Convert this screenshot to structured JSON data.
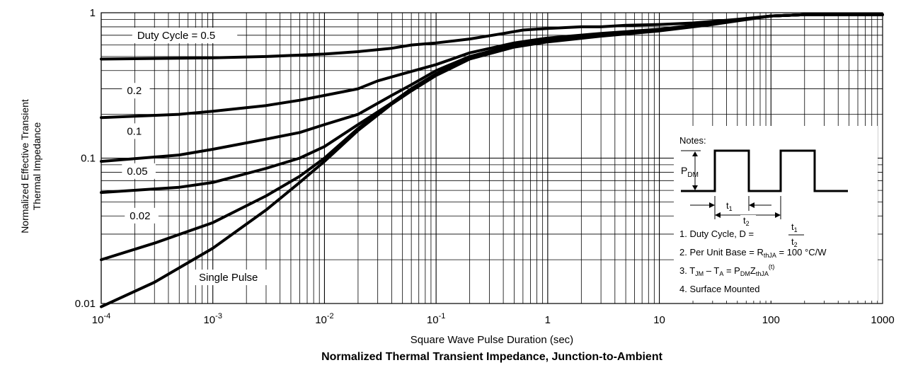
{
  "title": "Normalized Thermal Transient Impedance, Junction-to-Ambient",
  "chart_data": {
    "type": "line",
    "xscale": "log",
    "yscale": "log",
    "xlim": [
      0.0001,
      1000
    ],
    "ylim": [
      0.01,
      1
    ],
    "grid": true,
    "xlabel": "Square Wave Pulse Duration (sec)",
    "ylabel": [
      "Normalized Effective Transient",
      "Thermal Impedance"
    ],
    "xticks": [
      {
        "value": 0.0001,
        "mant": "10",
        "exp": "-4"
      },
      {
        "value": 0.001,
        "mant": "10",
        "exp": "-3"
      },
      {
        "value": 0.01,
        "mant": "10",
        "exp": "-2"
      },
      {
        "value": 0.1,
        "mant": "10",
        "exp": "-1"
      },
      {
        "value": 1,
        "mant": "1",
        "exp": ""
      },
      {
        "value": 10,
        "mant": "10",
        "exp": ""
      },
      {
        "value": 100,
        "mant": "100",
        "exp": ""
      },
      {
        "value": 1000,
        "mant": "1000",
        "exp": ""
      }
    ],
    "yticks": [
      {
        "value": 1,
        "label": "1"
      },
      {
        "value": 0.1,
        "label": "0.1"
      },
      {
        "value": 0.01,
        "label": "0.01"
      }
    ],
    "series": [
      {
        "name": "Duty Cycle = 0.5",
        "x": [
          0.0001,
          0.001,
          0.003,
          0.01,
          0.02,
          0.04,
          0.06,
          0.1,
          0.2,
          0.4,
          0.6,
          1,
          2,
          3,
          5,
          10,
          20,
          50,
          100,
          200,
          1000
        ],
        "y": [
          0.48,
          0.49,
          0.5,
          0.52,
          0.54,
          0.57,
          0.6,
          0.62,
          0.66,
          0.72,
          0.76,
          0.78,
          0.8,
          0.8,
          0.82,
          0.83,
          0.85,
          0.9,
          0.95,
          0.97,
          0.97
        ]
      },
      {
        "name": "0.2",
        "x": [
          0.0001,
          0.0005,
          0.001,
          0.003,
          0.006,
          0.01,
          0.02,
          0.03,
          0.05,
          0.1,
          0.2,
          0.5,
          1,
          3,
          10,
          30,
          100,
          200,
          1000
        ],
        "y": [
          0.19,
          0.2,
          0.21,
          0.23,
          0.25,
          0.27,
          0.3,
          0.34,
          0.38,
          0.44,
          0.53,
          0.62,
          0.67,
          0.72,
          0.77,
          0.85,
          0.95,
          0.97,
          0.97
        ]
      },
      {
        "name": "0.1",
        "x": [
          0.0001,
          0.0005,
          0.001,
          0.003,
          0.006,
          0.01,
          0.02,
          0.04,
          0.06,
          0.1,
          0.2,
          0.5,
          1,
          3,
          10,
          30,
          100,
          200,
          1000
        ],
        "y": [
          0.095,
          0.105,
          0.115,
          0.135,
          0.15,
          0.17,
          0.2,
          0.27,
          0.32,
          0.4,
          0.5,
          0.6,
          0.65,
          0.7,
          0.76,
          0.84,
          0.95,
          0.97,
          0.97
        ]
      },
      {
        "name": "0.05",
        "x": [
          0.0001,
          0.0005,
          0.001,
          0.003,
          0.006,
          0.01,
          0.02,
          0.04,
          0.06,
          0.1,
          0.2,
          0.5,
          1,
          3,
          10,
          30,
          100,
          200,
          1000
        ],
        "y": [
          0.058,
          0.063,
          0.068,
          0.085,
          0.1,
          0.12,
          0.17,
          0.24,
          0.3,
          0.38,
          0.49,
          0.6,
          0.64,
          0.7,
          0.76,
          0.84,
          0.95,
          0.97,
          0.97
        ]
      },
      {
        "name": "0.02",
        "x": [
          0.0001,
          0.0003,
          0.001,
          0.003,
          0.006,
          0.01,
          0.02,
          0.04,
          0.06,
          0.1,
          0.2,
          0.5,
          1,
          3,
          10,
          30,
          100,
          200,
          1000
        ],
        "y": [
          0.02,
          0.026,
          0.036,
          0.055,
          0.075,
          0.1,
          0.16,
          0.24,
          0.3,
          0.38,
          0.49,
          0.59,
          0.64,
          0.7,
          0.76,
          0.84,
          0.95,
          0.97,
          0.97
        ]
      },
      {
        "name": "Single Pulse",
        "x": [
          0.0001,
          0.0003,
          0.001,
          0.003,
          0.006,
          0.01,
          0.02,
          0.04,
          0.06,
          0.1,
          0.2,
          0.5,
          1,
          3,
          10,
          30,
          100,
          200,
          1000
        ],
        "y": [
          0.0095,
          0.014,
          0.024,
          0.044,
          0.068,
          0.095,
          0.155,
          0.235,
          0.29,
          0.37,
          0.48,
          0.58,
          0.63,
          0.69,
          0.75,
          0.83,
          0.95,
          0.97,
          0.97
        ]
      }
    ],
    "curve_labels": [
      {
        "text": "Duty Cycle = 0.5",
        "x": 0.00021,
        "y": 0.66
      },
      {
        "text": "0.2",
        "x": 0.00017,
        "y": 0.275
      },
      {
        "text": "0.1",
        "x": 0.00017,
        "y": 0.145
      },
      {
        "text": "0.05",
        "x": 0.00017,
        "y": 0.077
      },
      {
        "text": "0.02",
        "x": 0.00018,
        "y": 0.038
      },
      {
        "text": "Single Pulse",
        "x": 0.00075,
        "y": 0.0143
      }
    ]
  },
  "notes": {
    "heading": "Notes:",
    "pdm": {
      "main": "P",
      "sub": "DM"
    },
    "t1": {
      "main": "t",
      "sub": "1"
    },
    "t2": {
      "main": "t",
      "sub": "2"
    },
    "note1": "1. Duty Cycle, D =",
    "note2": {
      "text": "2. Per Unit Base = R",
      "sub": "thJA",
      "rest": " = 100 °C/W"
    },
    "note3": {
      "a": "3. T",
      "a_sub": "JM",
      "b": " – T",
      "b_sub": "A",
      "c": " = P",
      "c_sub": "DM",
      "d": "Z",
      "d_sub": "thJA",
      "sup": "(t)"
    },
    "note4": "4. Surface Mounted"
  }
}
